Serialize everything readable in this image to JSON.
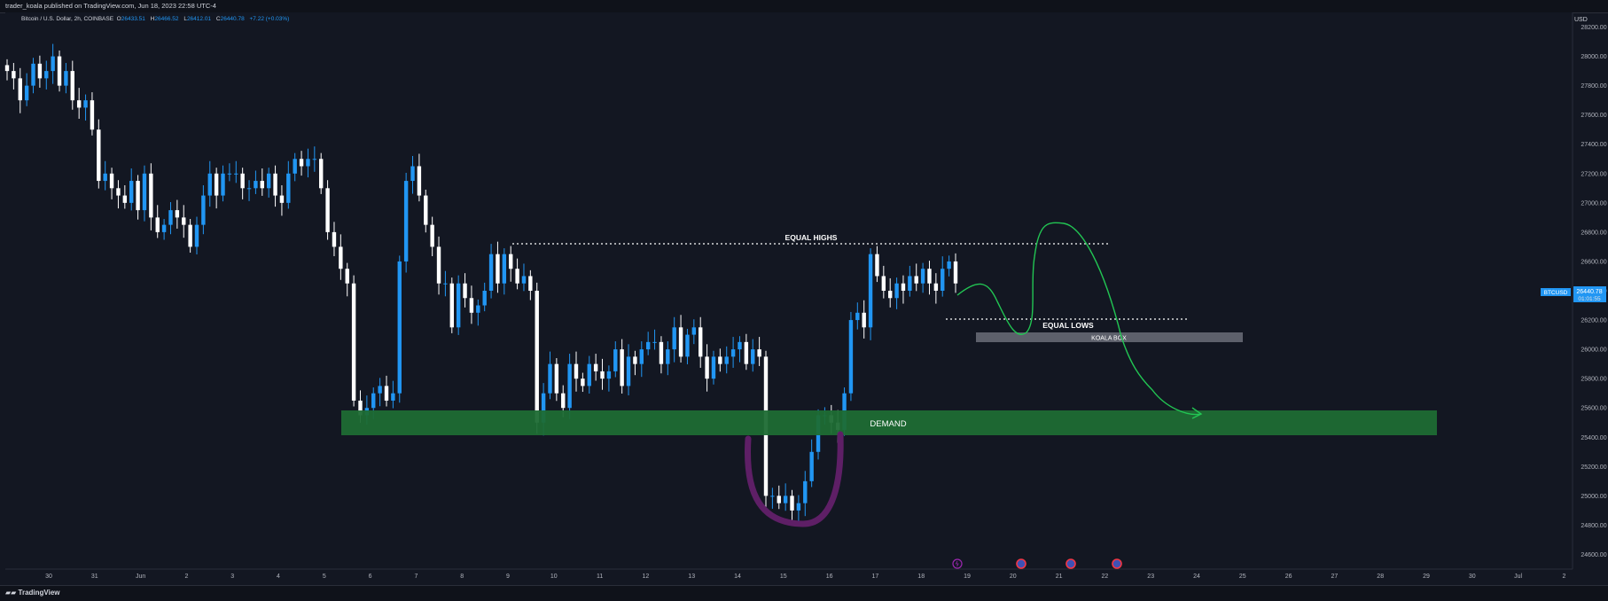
{
  "header": {
    "published_text": "trader_koala published on TradingView.com, Jun 18, 2023 22:58 UTC-4"
  },
  "symbol": {
    "description": "Bitcoin / U.S. Dollar, 2h, COINBASE",
    "open_label": "O",
    "open_value": "26433.51",
    "high_label": "H",
    "high_value": "26466.52",
    "low_label": "L",
    "low_value": "26412.01",
    "close_label": "C",
    "close_value": "26440.78",
    "change": "+7.22 (+0.03%)"
  },
  "price_axis": {
    "currency": "USD",
    "ticks": [
      "28200.00",
      "28000.00",
      "27800.00",
      "27600.00",
      "27400.00",
      "27200.00",
      "27000.00",
      "26800.00",
      "26600.00",
      "26400.00",
      "26200.00",
      "26000.00",
      "25800.00",
      "25600.00",
      "25400.00",
      "25200.00",
      "25000.00",
      "24800.00",
      "24600.00"
    ],
    "current_symbol": "BTCUSD",
    "current_price": "26440.78",
    "countdown": "01:01:55"
  },
  "time_axis": {
    "ticks": [
      "30",
      "31",
      "Jun",
      "2",
      "3",
      "4",
      "5",
      "6",
      "7",
      "8",
      "9",
      "10",
      "11",
      "12",
      "13",
      "14",
      "15",
      "16",
      "17",
      "18",
      "19",
      "20",
      "21",
      "22",
      "23",
      "24",
      "25",
      "26",
      "27",
      "28",
      "29",
      "30",
      "Jul",
      "2"
    ]
  },
  "annotations": {
    "equal_highs": "EQUAL HIGHS",
    "equal_lows": "EQUAL LOWS",
    "koala_box": "KOALA BOX",
    "demand": "DEMAND"
  },
  "footer": {
    "brand": "TradingView"
  },
  "colors": {
    "background": "#131722",
    "demand_zone": "#1e6b34",
    "koala_box": "#5d606b",
    "projection": "#22c553",
    "highlight_u": "#5e1f66",
    "price_tag": "#2196f3",
    "candle_up": "#2196f3",
    "candle_down": "#ffffff"
  },
  "chart_data": {
    "type": "candlestick",
    "symbol": "BTCUSD",
    "interval": "2h",
    "ylim": [
      24500,
      28300
    ],
    "closes": [
      27900,
      27850,
      27700,
      27800,
      27950,
      27850,
      27900,
      28000,
      27800,
      27900,
      27700,
      27650,
      27700,
      27500,
      27150,
      27200,
      27100,
      27050,
      27000,
      27150,
      26950,
      27200,
      26900,
      26800,
      26850,
      26950,
      26900,
      26850,
      26700,
      26850,
      27050,
      27200,
      27050,
      27200,
      27200,
      27200,
      27100,
      27100,
      27150,
      27100,
      27200,
      27050,
      27000,
      27200,
      27300,
      27250,
      27300,
      27300,
      27100,
      26800,
      26700,
      26550,
      26450,
      25650,
      25550,
      25600,
      25700,
      25750,
      25650,
      25700,
      26600,
      27150,
      27250,
      27050,
      26850,
      26700,
      26450,
      26450,
      26150,
      26450,
      26350,
      26250,
      26300,
      26400,
      26650,
      26450,
      26650,
      26550,
      26450,
      26500,
      26400,
      25500,
      25700,
      25900,
      25700,
      25600,
      25900,
      25800,
      25750,
      25900,
      25850,
      25800,
      25850,
      26000,
      25750,
      25950,
      25900,
      26000,
      26050,
      26050,
      25900,
      26000,
      26150,
      25950,
      26100,
      26150,
      25950,
      25800,
      25950,
      25900,
      25950,
      26000,
      26050,
      25900,
      26000,
      25950,
      25000,
      25000,
      24950,
      25000,
      24900,
      24950,
      25100,
      25300,
      25550,
      25550,
      25500,
      25450,
      25700,
      26200,
      26250,
      26150,
      26650,
      26500,
      26400,
      26350,
      26450,
      26400,
      26500,
      26450,
      26550,
      26450,
      26400,
      26550,
      26600,
      26450
    ]
  }
}
